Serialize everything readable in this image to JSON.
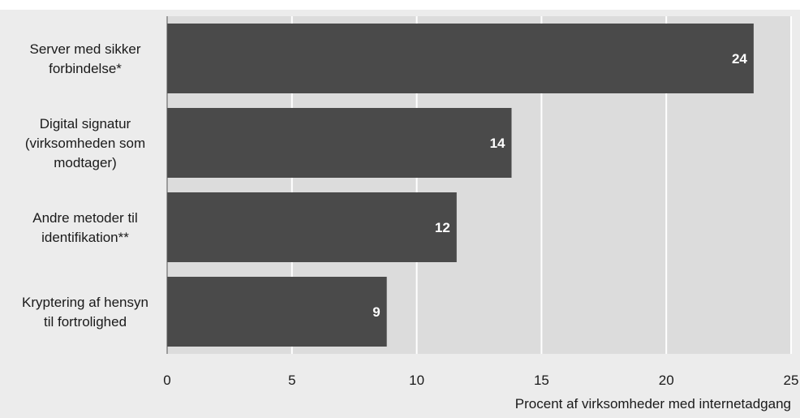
{
  "chart_data": {
    "type": "bar",
    "orientation": "horizontal",
    "categories": [
      [
        "Server med sikker",
        "forbindelse*"
      ],
      [
        "Digital signatur",
        "(virksomheden som",
        "modtager)"
      ],
      [
        "Andre metoder til",
        "identifikation**"
      ],
      [
        "Kryptering af hensyn",
        "til fortrolighed"
      ]
    ],
    "values": [
      23.5,
      13.8,
      11.6,
      8.8
    ],
    "data_labels": [
      "24",
      "14",
      "12",
      "9"
    ],
    "xlabel": "Procent af virksomheder med internetadgang",
    "xlim": [
      0,
      25
    ],
    "xticks": [
      "0",
      "5",
      "10",
      "15",
      "20",
      "25"
    ],
    "xtick_values": [
      0,
      5,
      10,
      15,
      20,
      25
    ],
    "grid": true,
    "colors": {
      "bar": "#4a4a4a",
      "plot_background": "#dcdcdc",
      "outer_background": "#ececec",
      "grid": "#ffffff",
      "data_label": "#ffffff"
    }
  }
}
